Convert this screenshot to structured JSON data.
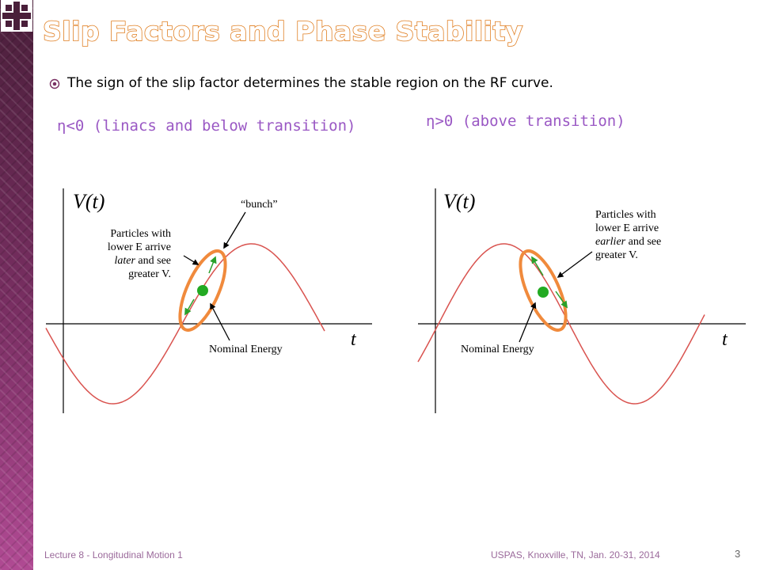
{
  "slide": {
    "title": "Slip Factors and Phase Stability",
    "bullet": "The sign of the slip factor determines the stable region on the RF curve.",
    "left_heading": "η<0 (linacs and below transition)",
    "right_heading": "η>0 (above transition)",
    "left_plot": {
      "v_label": "V(t)",
      "t_label": "t",
      "bunch_label": "“bunch”",
      "note_l1": "Particles with",
      "note_l2": "lower E arrive",
      "note_l3a": "later",
      "note_l3b": " and see",
      "note_l4": "greater V.",
      "nominal_label": "Nominal Energy"
    },
    "right_plot": {
      "v_label": "V(t)",
      "t_label": "t",
      "note_l1": "Particles with",
      "note_l2": "lower E arrive",
      "note_l3a": "earlier",
      "note_l3b": " and see",
      "note_l4": "greater V.",
      "nominal_label": "Nominal Energy"
    },
    "footer_left": "Lecture 8 - Longitudinal Motion 1",
    "footer_right": "USPAS, Knoxville, TN, Jan. 20-31, 2014",
    "page_number": "3"
  },
  "colors": {
    "title_outline": "#e07f22",
    "heading": "#9a58c4",
    "curve": "#d9534f",
    "ellipse": "#f08a3c",
    "dot": "#22aa22",
    "arrow": "#2aa02a",
    "sidebar": "#7a2f63"
  }
}
